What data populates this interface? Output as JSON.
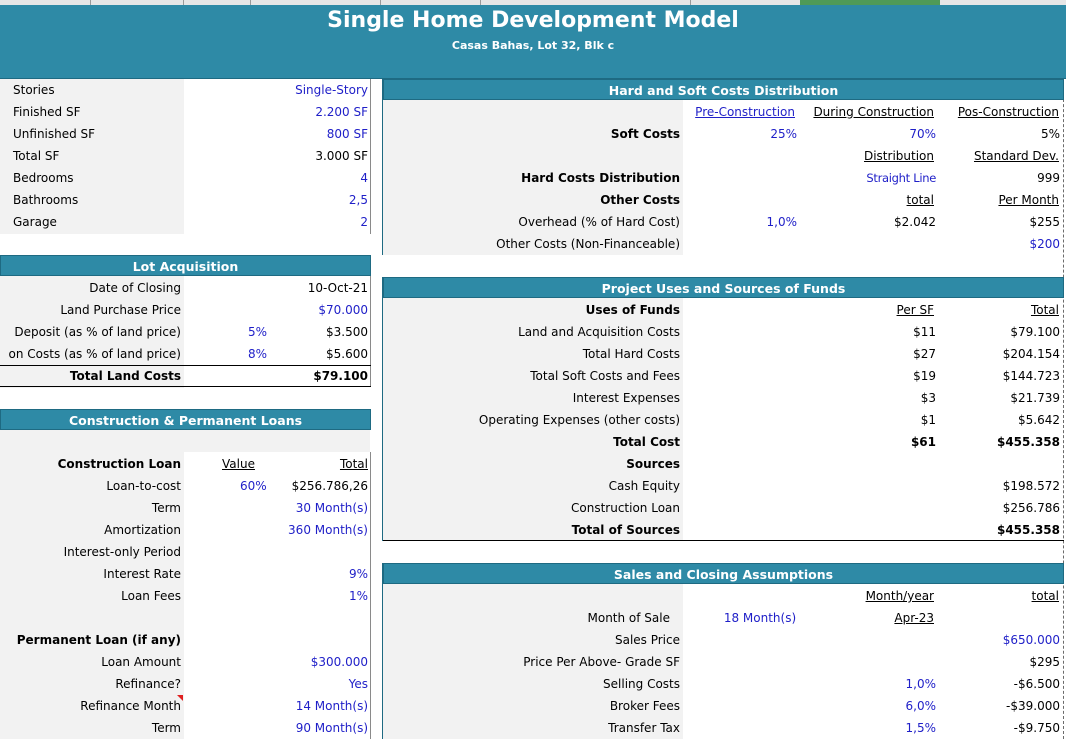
{
  "header": {
    "title": "Single Home Development Model",
    "subtitle": "Casas Bahas, Lot 32, Blk c"
  },
  "property": {
    "rows": [
      {
        "label": "Stories",
        "value": "Single-Story",
        "blue": true
      },
      {
        "label": "Finished SF",
        "value": "2.200 SF",
        "blue": true
      },
      {
        "label": "Unfinished SF",
        "value": "800 SF",
        "blue": true
      },
      {
        "label": "Total SF",
        "value": "3.000 SF",
        "blue": false
      },
      {
        "label": "Bedrooms",
        "value": "4",
        "blue": true
      },
      {
        "label": "Bathrooms",
        "value": "2,5",
        "blue": true
      },
      {
        "label": "Garage",
        "value": "2",
        "blue": true
      }
    ]
  },
  "lot": {
    "title": "Lot Acquisition",
    "closing_label": "Date of Closing",
    "closing_value": "10-Oct-21",
    "price_label": "Land Purchase Price",
    "price_value": "$70.000",
    "deposit_label": "Deposit (as % of land price)",
    "deposit_pct": "5%",
    "deposit_value": "$3.500",
    "costs_label": "on Costs (as % of land price)",
    "costs_pct": "8%",
    "costs_value": "$5.600",
    "total_label": "Total Land Costs",
    "total_value": "$79.100"
  },
  "loans": {
    "title": "Construction & Permanent Loans",
    "construction_label": "Construction Loan",
    "value_hdr": "Value",
    "total_hdr": "Total",
    "ltc_label": "Loan-to-cost",
    "ltc_pct": "60%",
    "ltc_total": "$256.786,26",
    "term_label": "Term",
    "term_value": "30 Month(s)",
    "amort_label": "Amortization",
    "amort_value": "360 Month(s)",
    "io_label": "Interest-only Period",
    "rate_label": "Interest Rate",
    "rate_value": "9%",
    "fees_label": "Loan Fees",
    "fees_value": "1%",
    "perm_label": "Permanent Loan (if any)",
    "amount_label": "Loan Amount",
    "amount_value": "$300.000",
    "refi_label": "Refinance?",
    "refi_value": "Yes",
    "refi_month_label": "Refinance Month",
    "refi_month_value": "14 Month(s)",
    "perm_term_label": "Term",
    "perm_term_value": "90 Month(s)"
  },
  "hardsoft": {
    "title": "Hard and Soft Costs Distribution",
    "pre_hdr": "Pre-Construction",
    "during_hdr": "During Construction",
    "post_hdr": "Pos-Construction",
    "soft_label": "Soft Costs",
    "soft_pre": "25%",
    "soft_during": "70%",
    "soft_post": "5%",
    "dist_hdr": "Distribution",
    "std_hdr": "Standard Dev.",
    "hard_label": "Hard Costs Distribution",
    "hard_dist": "Straight Line",
    "hard_std": "999",
    "total_hdr": "total",
    "permonth_hdr": "Per Month",
    "other_label": "Other Costs",
    "overhead_label": "Overhead (% of Hard Cost)",
    "overhead_pct": "1,0%",
    "overhead_total": "$2.042",
    "overhead_month": "$255",
    "nonfin_label": "Other Costs (Non-Financeable)",
    "nonfin_value": "$200"
  },
  "uses": {
    "title": "Project Uses and Sources of Funds",
    "uses_label": "Uses of Funds",
    "persf_hdr": "Per SF",
    "total_hdr": "Total",
    "rows": [
      {
        "label": "Land and Acquisition Costs",
        "persf": "$11",
        "total": "$79.100"
      },
      {
        "label": "Total Hard Costs",
        "persf": "$27",
        "total": "$204.154"
      },
      {
        "label": "Total Soft Costs and Fees",
        "persf": "$19",
        "total": "$144.723"
      },
      {
        "label": "Interest Expenses",
        "persf": "$3",
        "total": "$21.739"
      },
      {
        "label": "Operating Expenses (other costs)",
        "persf": "$1",
        "total": "$5.642"
      }
    ],
    "totalcost_label": "Total Cost",
    "totalcost_persf": "$61",
    "totalcost_total": "$455.358",
    "sources_label": "Sources",
    "equity_label": "Cash Equity",
    "equity_value": "$198.572",
    "conloan_label": "Construction Loan",
    "conloan_value": "$256.786",
    "totalsrc_label": "Total of Sources",
    "totalsrc_value": "$455.358"
  },
  "sales": {
    "title": "Sales and Closing Assumptions",
    "monthyear_hdr": "Month/year",
    "total_hdr": "total",
    "month_label": "Month of Sale",
    "month_value": "18 Month(s)",
    "month_date": "Apr-23",
    "price_label": "Sales Price",
    "price_value": "$650.000",
    "ppsf_label": "Price Per Above- Grade SF",
    "ppsf_value": "$295",
    "selling_label": "Selling Costs",
    "selling_pct": "1,0%",
    "selling_value": "-$6.500",
    "broker_label": "Broker Fees",
    "broker_pct": "6,0%",
    "broker_value": "-$39.000",
    "transfer_label": "Transfer Tax",
    "transfer_pct": "1,5%",
    "transfer_value": "-$9.750"
  },
  "colors": {
    "header_teal": "#2e8aa6",
    "input_blue": "#1f1fc8",
    "panel_gray": "#f2f2f2"
  }
}
